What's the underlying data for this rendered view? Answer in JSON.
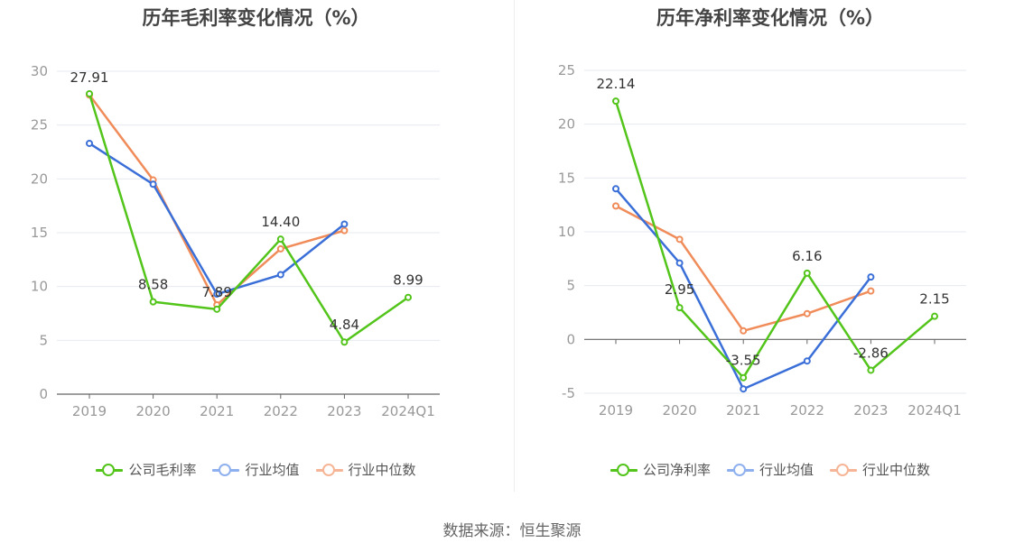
{
  "source": "数据来源：恒生聚源",
  "colors": {
    "company": "#52c41a",
    "avg": "#3b6fd8",
    "median": "#f08c5a",
    "grid": "#e6e9f0",
    "axis": "#555555",
    "label": "#333333",
    "tick": "#999999"
  },
  "chart_data": [
    {
      "type": "line",
      "title": "历年毛利率变化情况（%）",
      "categories": [
        "2019",
        "2020",
        "2021",
        "2022",
        "2023",
        "2024Q1"
      ],
      "ylim": [
        0,
        30
      ],
      "yticks": [
        0,
        5,
        10,
        15,
        20,
        25,
        30
      ],
      "grid": true,
      "legend": "bottom-center",
      "series": [
        {
          "name": "公司毛利率",
          "key": "company",
          "values": [
            27.91,
            8.58,
            7.89,
            14.4,
            4.84,
            8.99
          ],
          "labels": [
            "27.91",
            "8.58",
            "7.89",
            "14.40",
            "4.84",
            "8.99"
          ]
        },
        {
          "name": "行业均值",
          "key": "avg",
          "values": [
            23.3,
            19.5,
            9.3,
            11.1,
            15.8,
            null
          ]
        },
        {
          "name": "行业中位数",
          "key": "median",
          "values": [
            27.8,
            19.9,
            8.3,
            13.5,
            15.2,
            null
          ]
        }
      ]
    },
    {
      "type": "line",
      "title": "历年净利率变化情况（%）",
      "categories": [
        "2019",
        "2020",
        "2021",
        "2022",
        "2023",
        "2024Q1"
      ],
      "ylim": [
        -5,
        25
      ],
      "yticks": [
        -5,
        0,
        5,
        10,
        15,
        20,
        25
      ],
      "grid": true,
      "legend": "bottom-center",
      "series": [
        {
          "name": "公司净利率",
          "key": "company",
          "values": [
            22.14,
            2.95,
            -3.55,
            6.16,
            -2.86,
            2.15
          ],
          "labels": [
            "22.14",
            "2.95",
            "-3.55",
            "6.16",
            "-2.86",
            "2.15"
          ]
        },
        {
          "name": "行业均值",
          "key": "avg",
          "values": [
            14.0,
            7.1,
            -4.6,
            -2.0,
            5.8,
            null
          ]
        },
        {
          "name": "行业中位数",
          "key": "median",
          "values": [
            12.4,
            9.3,
            0.8,
            2.4,
            4.5,
            null
          ]
        }
      ]
    }
  ]
}
